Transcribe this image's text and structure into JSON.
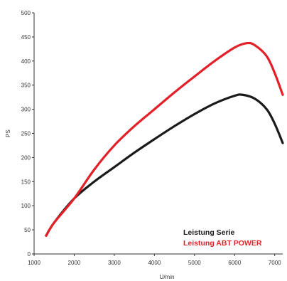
{
  "chart_data": {
    "type": "line",
    "title": "",
    "xlabel": "U/min",
    "ylabel": "PS",
    "xlim": [
      1000,
      7200
    ],
    "ylim": [
      0,
      500
    ],
    "xticks": [
      1000,
      2000,
      3000,
      4000,
      5000,
      6000,
      7000
    ],
    "yticks": [
      0,
      50,
      100,
      150,
      200,
      250,
      300,
      350,
      400,
      450,
      500
    ],
    "grid": false,
    "legend_position": "bottom-right",
    "series": [
      {
        "name": "Leistung Serie",
        "color": "#1a1a1a",
        "x": [
          1300,
          1500,
          2000,
          2500,
          3000,
          3500,
          4000,
          4500,
          5000,
          5500,
          6000,
          6200,
          6500,
          6800,
          7000,
          7200
        ],
        "y": [
          38,
          65,
          115,
          150,
          180,
          210,
          238,
          265,
          290,
          312,
          328,
          330,
          322,
          300,
          270,
          230
        ]
      },
      {
        "name": "Leistung ABT POWER",
        "color": "#e32028",
        "x": [
          1300,
          1500,
          2000,
          2500,
          3000,
          3500,
          4000,
          4500,
          5000,
          5500,
          6000,
          6300,
          6500,
          6800,
          7000,
          7200
        ],
        "y": [
          38,
          65,
          115,
          175,
          225,
          265,
          300,
          335,
          368,
          400,
          428,
          437,
          433,
          410,
          375,
          330
        ]
      }
    ]
  }
}
